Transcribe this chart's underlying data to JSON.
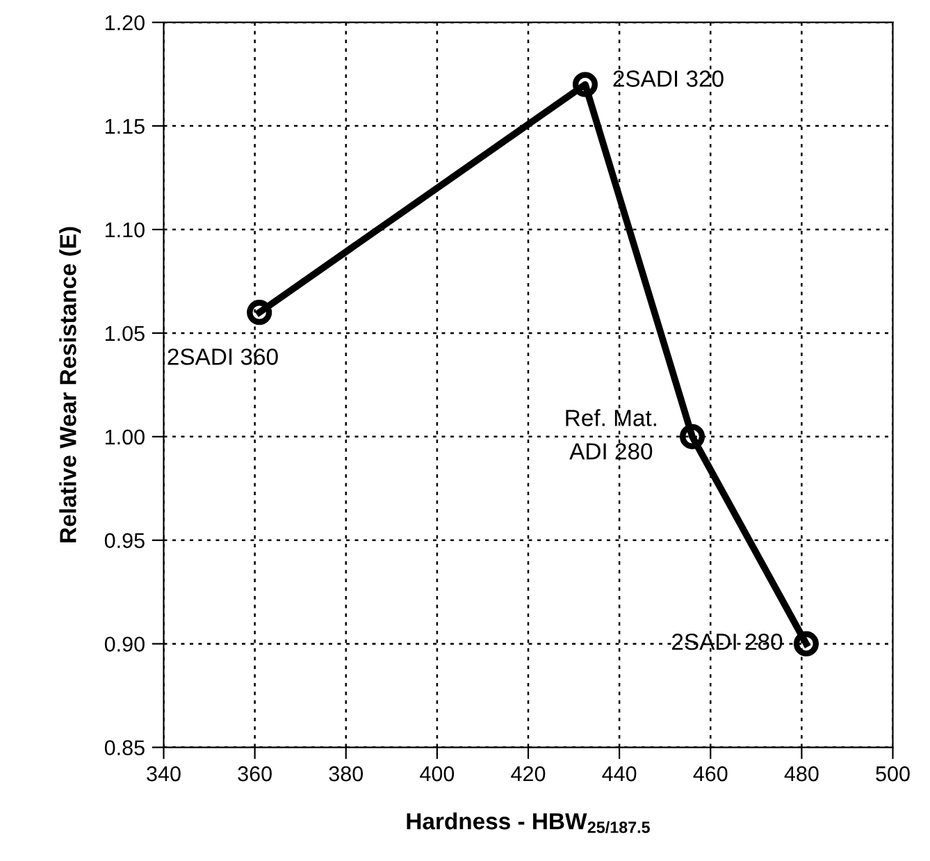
{
  "chart_data": {
    "type": "line",
    "xlabel": "Hardness - HBW$_{25/187.5}$",
    "ylabel": "Relative Wear Resistance (E)",
    "x": [
      361,
      432.5,
      456,
      481
    ],
    "series": [
      {
        "color": "#000000",
        "values": [
          1.06,
          1.17,
          1.0,
          0.9
        ]
      }
    ],
    "marker": "circle",
    "line_style": "solid",
    "grid": true,
    "xlim": [
      340,
      500
    ],
    "xticks": [
      340,
      360,
      380,
      400,
      420,
      440,
      460,
      480,
      500
    ],
    "ylim": [
      0.85,
      1.2
    ],
    "yticks": [
      {
        "value": 0.85,
        "label": "0.85"
      },
      {
        "value": 0.9,
        "label": "0.90"
      },
      {
        "value": 0.95,
        "label": "0.95"
      },
      {
        "value": 1.0,
        "label": "1.00"
      },
      {
        "value": 1.05,
        "label": "1.05"
      },
      {
        "value": 1.1,
        "label": "1.10"
      },
      {
        "value": 1.15,
        "label": "1.15"
      },
      {
        "value": 1.2,
        "label": "1.20"
      }
    ],
    "annotations": [
      {
        "text": "2SADI 360",
        "x": 361,
        "y": 1.06
      },
      {
        "text": "2SADI 320",
        "x": 432.5,
        "y": 1.17
      },
      {
        "text": "Ref. Mat.\nADI 280",
        "x": 456,
        "y": 1.0
      },
      {
        "text": "2SADI 280",
        "x": 481,
        "y": 0.9
      }
    ]
  }
}
